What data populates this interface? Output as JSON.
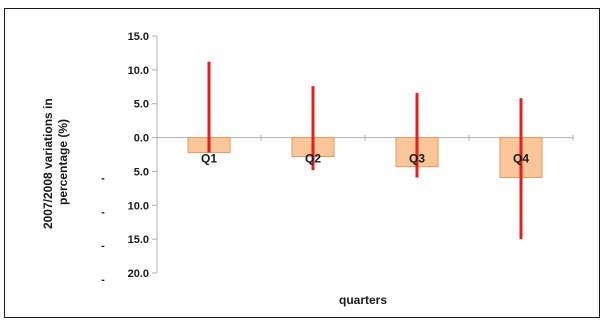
{
  "chart_data": {
    "type": "bar",
    "categories": [
      "Q1",
      "Q2",
      "Q3",
      "Q4"
    ],
    "bar_values": [
      -2.2,
      -2.8,
      -4.3,
      -5.9
    ],
    "range_high": [
      11.2,
      7.6,
      6.6,
      5.8
    ],
    "range_low": [
      -2.2,
      -4.8,
      -5.9,
      -15.0
    ],
    "xlabel": "quarters",
    "ylabel": "2007/2008 variations in percentage (%)",
    "ylim": [
      -20,
      15
    ],
    "y_ticks": [
      {
        "value": 15,
        "label": "15.0",
        "prefix": ""
      },
      {
        "value": 10,
        "label": "10.0",
        "prefix": ""
      },
      {
        "value": 5,
        "label": "5.0",
        "prefix": ""
      },
      {
        "value": 0,
        "label": "0.0",
        "prefix": ""
      },
      {
        "value": -5,
        "label": "5.0",
        "prefix": "-"
      },
      {
        "value": -10,
        "label": "10.0",
        "prefix": "-"
      },
      {
        "value": -15,
        "label": "15.0",
        "prefix": "-"
      },
      {
        "value": -20,
        "label": "20.0",
        "prefix": "-"
      }
    ],
    "grid": false,
    "legend": "none",
    "colors": {
      "bar_fill": "#fbc69a",
      "bar_stroke": "#e39a63",
      "range_line": "#e02020",
      "axis": "#b0b0b0",
      "text": "#1a1a1a"
    }
  }
}
